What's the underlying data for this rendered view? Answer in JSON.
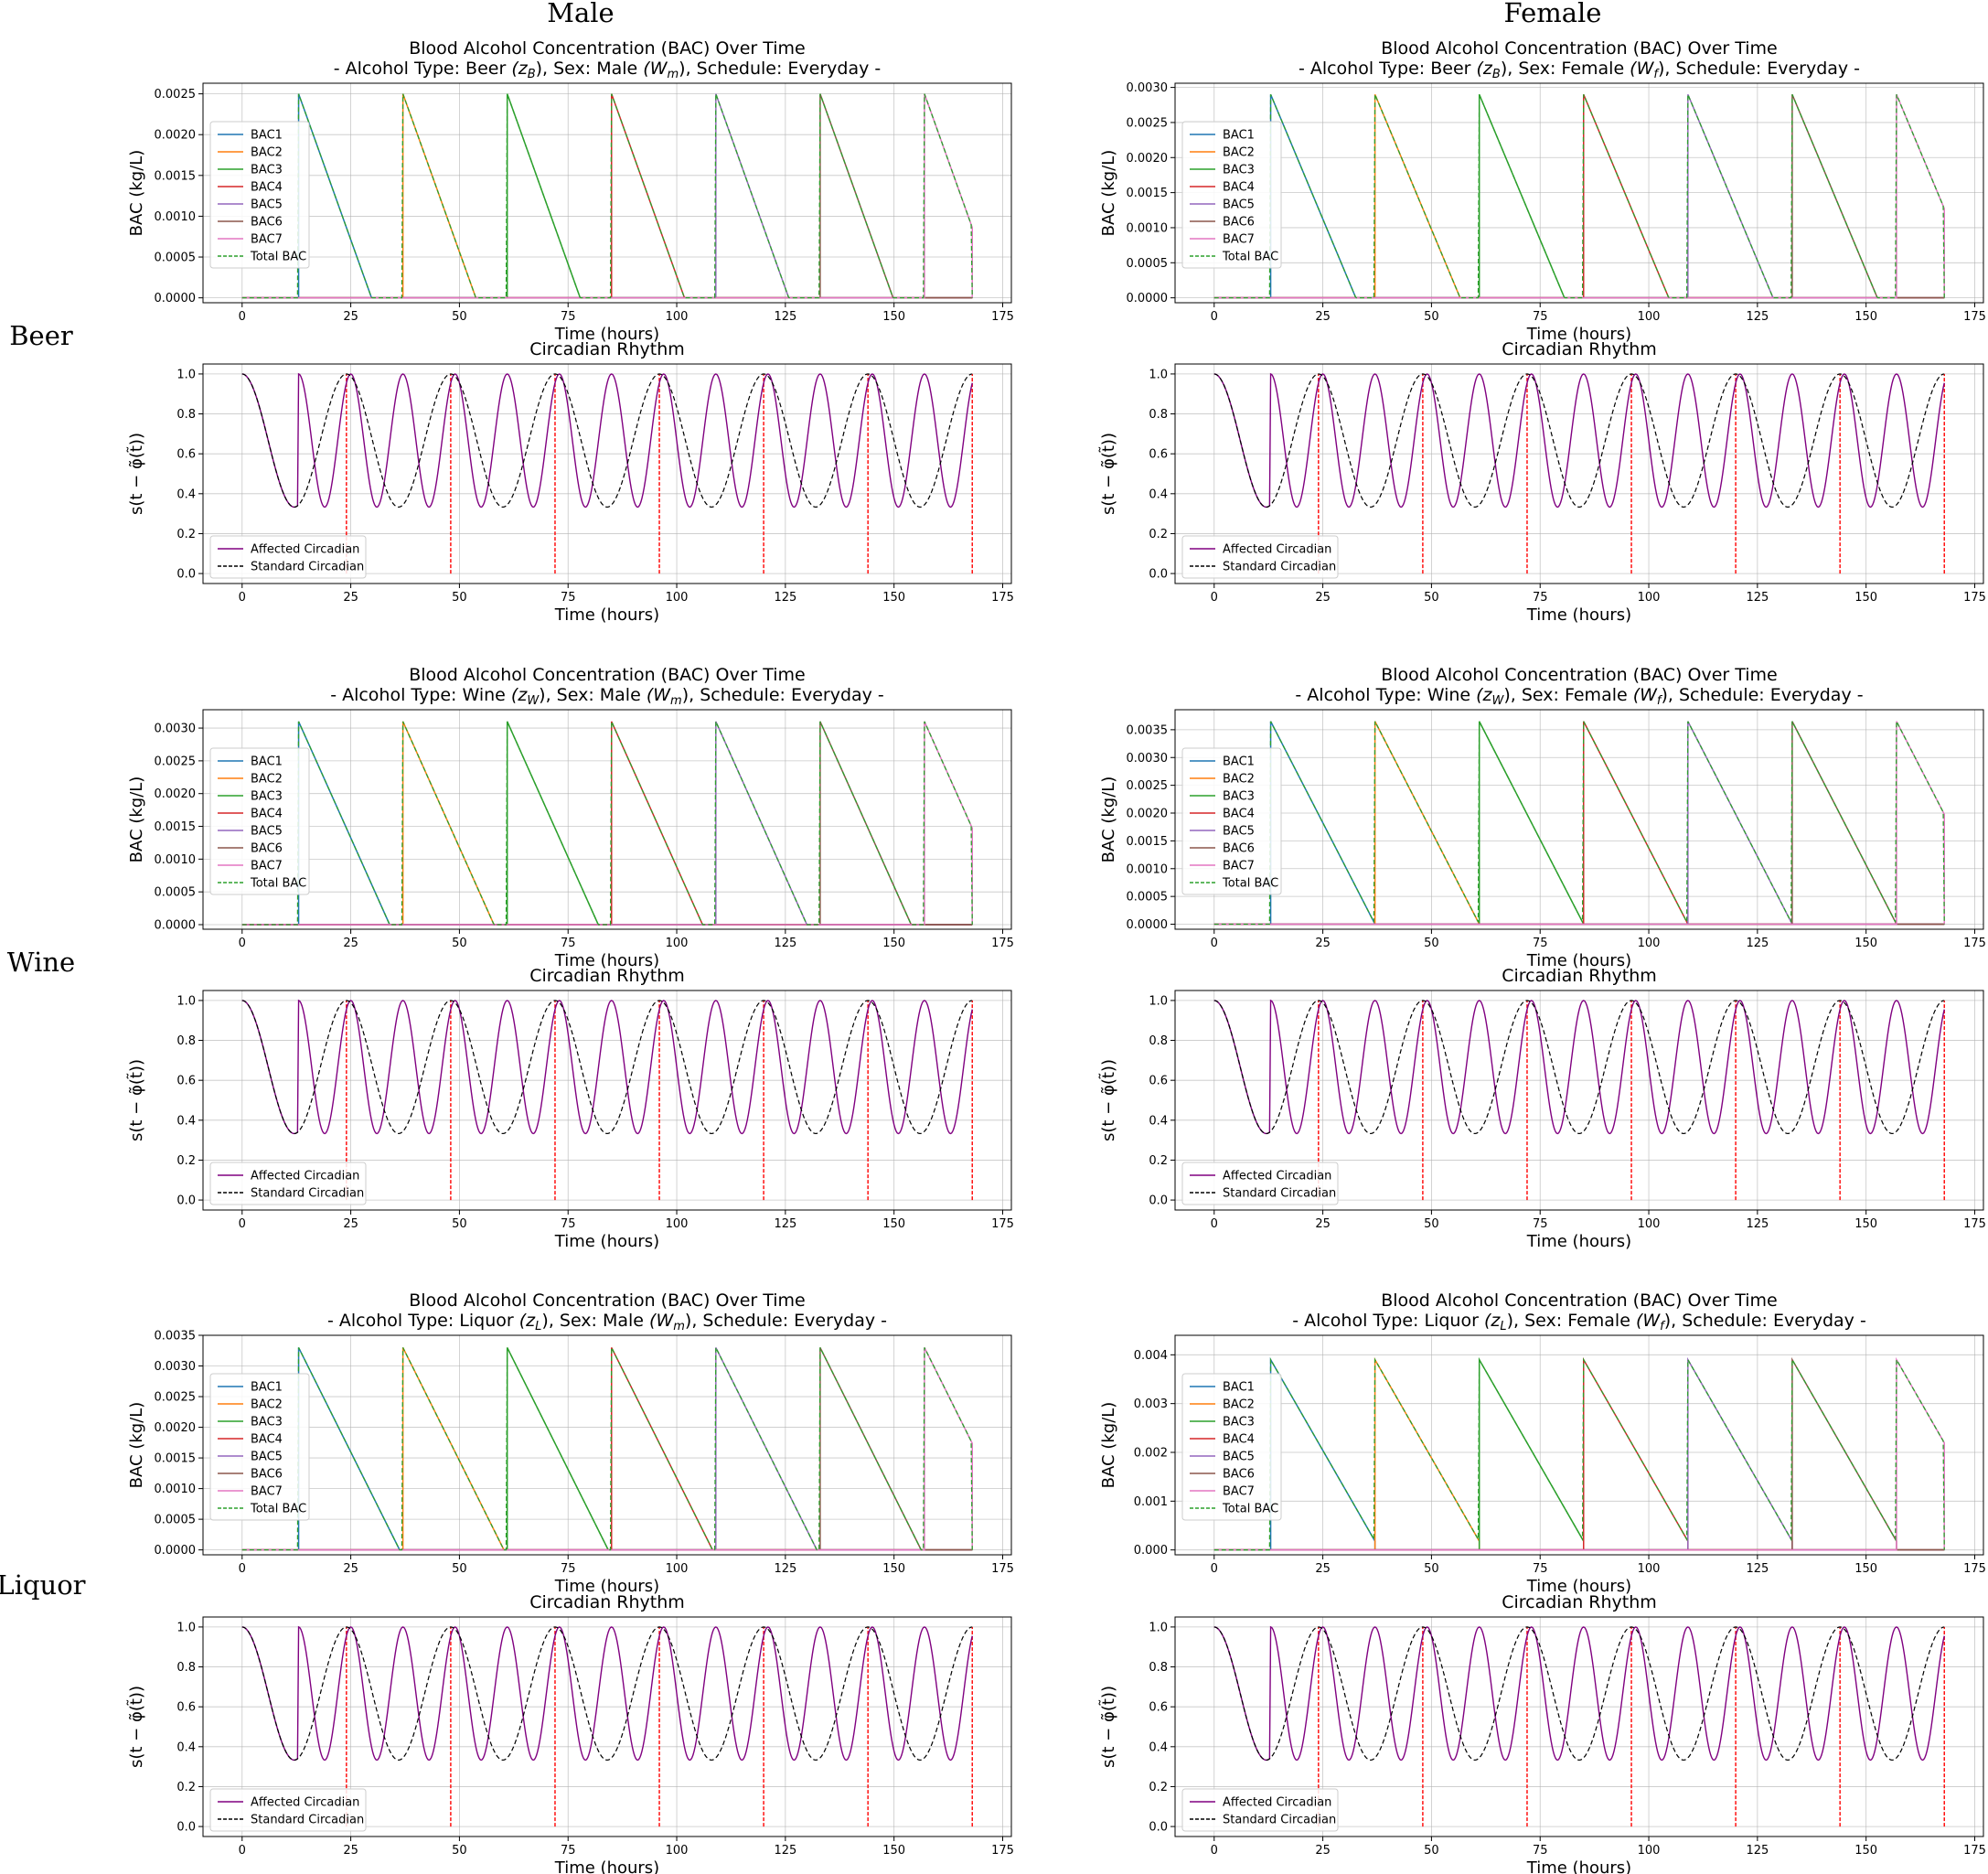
{
  "column_headers": [
    "Male",
    "Female"
  ],
  "row_headers": [
    "Beer",
    "Wine",
    "Liquor"
  ],
  "colors": {
    "BAC1": "#1f77b4",
    "BAC2": "#ff7f0e",
    "BAC3": "#2ca02c",
    "BAC4": "#d62728",
    "BAC5": "#9467bd",
    "BAC6": "#8c564b",
    "BAC7": "#e377c2",
    "Total BAC": "#2ca02c",
    "Affected Circadian": "#800080",
    "Standard Circadian": "#000000",
    "drink_markers": "#ff0000"
  },
  "chart_data": [
    {
      "type": "line",
      "sex": "Male",
      "alcohol": "Beer",
      "title_lines": [
        "Blood Alcohol Concentration (BAC) Over Time",
        "- Alcohol Type: Beer (z_B), Sex: Male (W_m), Schedule: Everyday -"
      ],
      "xlabel": "Time (hours)",
      "ylabel": "BAC (kg/L)",
      "xlim": [
        -9,
        177
      ],
      "xticks": [
        0,
        25,
        50,
        75,
        100,
        125,
        150,
        175
      ],
      "ylim": [
        -6e-05,
        0.00263
      ],
      "yticks": [
        0,
        0.0005,
        0.001,
        0.0015,
        0.002,
        0.0025
      ],
      "ytick_labels": [
        "0.0000",
        "0.0005",
        "0.0010",
        "0.0015",
        "0.0020",
        "0.0025"
      ],
      "grid": true,
      "legend_position": "upper left",
      "legend": [
        "BAC1",
        "BAC2",
        "BAC3",
        "BAC4",
        "BAC5",
        "BAC6",
        "BAC7",
        "Total BAC"
      ],
      "drink_times": [
        13,
        37,
        61,
        85,
        109,
        133,
        157
      ],
      "peak": 0.0025,
      "elim_rate": 0.000149,
      "end_time": 168
    },
    {
      "type": "line",
      "sex": "Male",
      "alcohol": "Beer",
      "title_lines": [
        "Circadian Rhythm"
      ],
      "xlabel": "Time (hours)",
      "ylabel": "s(t − φ̃(t̃))",
      "xlim": [
        -9,
        177
      ],
      "xticks": [
        0,
        25,
        50,
        75,
        100,
        125,
        150,
        175
      ],
      "ylim": [
        -0.05,
        1.05
      ],
      "yticks": [
        0,
        0.2,
        0.4,
        0.6,
        0.8,
        1.0
      ],
      "ytick_labels": [
        "0.0",
        "0.2",
        "0.4",
        "0.6",
        "0.8",
        "1.0"
      ],
      "grid": true,
      "legend_position": "lower left",
      "legend": [
        "Affected Circadian",
        "Standard Circadian"
      ],
      "drink_times": [
        13,
        37,
        61,
        85,
        109,
        133,
        157
      ],
      "marker_times": [
        24,
        48,
        72,
        96,
        120,
        144,
        168
      ],
      "min_value": 0.333,
      "standard_period_h": 24,
      "affected_period_h": 12,
      "affected_after_drink_start": 0,
      "end_time": 168
    },
    {
      "type": "line",
      "sex": "Female",
      "alcohol": "Beer",
      "title_lines": [
        "Blood Alcohol Concentration (BAC) Over Time",
        "- Alcohol Type: Beer (z_B), Sex: Female (W_f), Schedule: Everyday -"
      ],
      "xlabel": "Time (hours)",
      "ylabel": "BAC (kg/L)",
      "xlim": [
        -9,
        177
      ],
      "xticks": [
        0,
        25,
        50,
        75,
        100,
        125,
        150,
        175
      ],
      "ylim": [
        -7e-05,
        0.00306
      ],
      "yticks": [
        0,
        0.0005,
        0.001,
        0.0015,
        0.002,
        0.0025,
        0.003
      ],
      "ytick_labels": [
        "0.0000",
        "0.0005",
        "0.0010",
        "0.0015",
        "0.0020",
        "0.0025",
        "0.0030"
      ],
      "grid": true,
      "legend_position": "upper left",
      "legend": [
        "BAC1",
        "BAC2",
        "BAC3",
        "BAC4",
        "BAC5",
        "BAC6",
        "BAC7",
        "Total BAC"
      ],
      "drink_times": [
        13,
        37,
        61,
        85,
        109,
        133,
        157
      ],
      "peak": 0.0029,
      "elim_rate": 0.000148,
      "end_time": 168
    },
    {
      "type": "line",
      "sex": "Female",
      "alcohol": "Beer",
      "title_lines": [
        "Circadian Rhythm"
      ],
      "xlabel": "Time (hours)",
      "ylabel": "s(t − φ̃(t̃))",
      "xlim": [
        -9,
        177
      ],
      "xticks": [
        0,
        25,
        50,
        75,
        100,
        125,
        150,
        175
      ],
      "ylim": [
        -0.05,
        1.05
      ],
      "yticks": [
        0,
        0.2,
        0.4,
        0.6,
        0.8,
        1.0
      ],
      "ytick_labels": [
        "0.0",
        "0.2",
        "0.4",
        "0.6",
        "0.8",
        "1.0"
      ],
      "grid": true,
      "legend_position": "lower left",
      "legend": [
        "Affected Circadian",
        "Standard Circadian"
      ],
      "drink_times": [
        13,
        37,
        61,
        85,
        109,
        133,
        157
      ],
      "marker_times": [
        24,
        48,
        72,
        96,
        120,
        144,
        168
      ],
      "min_value": 0.333,
      "standard_period_h": 24,
      "affected_period_h": 12,
      "affected_after_drink_start": 0,
      "end_time": 168
    },
    {
      "type": "line",
      "sex": "Male",
      "alcohol": "Wine",
      "title_lines": [
        "Blood Alcohol Concentration (BAC) Over Time",
        "- Alcohol Type: Wine (z_W), Sex: Male (W_m), Schedule: Everyday -"
      ],
      "xlabel": "Time (hours)",
      "ylabel": "BAC (kg/L)",
      "xlim": [
        -9,
        177
      ],
      "xticks": [
        0,
        25,
        50,
        75,
        100,
        125,
        150,
        175
      ],
      "ylim": [
        -7e-05,
        0.00328
      ],
      "yticks": [
        0,
        0.0005,
        0.001,
        0.0015,
        0.002,
        0.0025,
        0.003
      ],
      "ytick_labels": [
        "0.0000",
        "0.0005",
        "0.0010",
        "0.0015",
        "0.0020",
        "0.0025",
        "0.0030"
      ],
      "grid": true,
      "legend_position": "upper left",
      "legend": [
        "BAC1",
        "BAC2",
        "BAC3",
        "BAC4",
        "BAC5",
        "BAC6",
        "BAC7",
        "Total BAC"
      ],
      "drink_times": [
        13,
        37,
        61,
        85,
        109,
        133,
        157
      ],
      "peak": 0.0031,
      "elim_rate": 0.000148,
      "end_time": 168
    },
    {
      "type": "line",
      "sex": "Male",
      "alcohol": "Wine",
      "title_lines": [
        "Circadian Rhythm"
      ],
      "xlabel": "Time (hours)",
      "ylabel": "s(t − φ̃(t̃))",
      "xlim": [
        -9,
        177
      ],
      "xticks": [
        0,
        25,
        50,
        75,
        100,
        125,
        150,
        175
      ],
      "ylim": [
        -0.05,
        1.05
      ],
      "yticks": [
        0,
        0.2,
        0.4,
        0.6,
        0.8,
        1.0
      ],
      "ytick_labels": [
        "0.0",
        "0.2",
        "0.4",
        "0.6",
        "0.8",
        "1.0"
      ],
      "grid": true,
      "legend_position": "lower left",
      "legend": [
        "Affected Circadian",
        "Standard Circadian"
      ],
      "drink_times": [
        13,
        37,
        61,
        85,
        109,
        133,
        157
      ],
      "marker_times": [
        24,
        48,
        72,
        96,
        120,
        144,
        168
      ],
      "min_value": 0.333,
      "standard_period_h": 24,
      "affected_period_h": 12,
      "affected_after_drink_start": 0,
      "end_time": 168
    },
    {
      "type": "line",
      "sex": "Female",
      "alcohol": "Wine",
      "title_lines": [
        "Blood Alcohol Concentration (BAC) Over Time",
        "- Alcohol Type: Wine (z_W), Sex: Female (W_f), Schedule: Everyday -"
      ],
      "xlabel": "Time (hours)",
      "ylabel": "BAC (kg/L)",
      "xlim": [
        -9,
        177
      ],
      "xticks": [
        0,
        25,
        50,
        75,
        100,
        125,
        150,
        175
      ],
      "ylim": [
        -9e-05,
        0.00386
      ],
      "yticks": [
        0,
        0.0005,
        0.001,
        0.0015,
        0.002,
        0.0025,
        0.003,
        0.0035
      ],
      "ytick_labels": [
        "0.0000",
        "0.0005",
        "0.0010",
        "0.0015",
        "0.0020",
        "0.0025",
        "0.0030",
        "0.0035"
      ],
      "grid": true,
      "legend_position": "upper left",
      "legend": [
        "BAC1",
        "BAC2",
        "BAC3",
        "BAC4",
        "BAC5",
        "BAC6",
        "BAC7",
        "Total BAC"
      ],
      "drink_times": [
        13,
        37,
        61,
        85,
        109,
        133,
        157
      ],
      "peak": 0.00365,
      "elim_rate": 0.000152,
      "end_time": 168
    },
    {
      "type": "line",
      "sex": "Female",
      "alcohol": "Wine",
      "title_lines": [
        "Circadian Rhythm"
      ],
      "xlabel": "Time (hours)",
      "ylabel": "s(t − φ̃(t̃))",
      "xlim": [
        -9,
        177
      ],
      "xticks": [
        0,
        25,
        50,
        75,
        100,
        125,
        150,
        175
      ],
      "ylim": [
        -0.05,
        1.05
      ],
      "yticks": [
        0,
        0.2,
        0.4,
        0.6,
        0.8,
        1.0
      ],
      "ytick_labels": [
        "0.0",
        "0.2",
        "0.4",
        "0.6",
        "0.8",
        "1.0"
      ],
      "grid": true,
      "legend_position": "lower left",
      "legend": [
        "Affected Circadian",
        "Standard Circadian"
      ],
      "drink_times": [
        13,
        37,
        61,
        85,
        109,
        133,
        157
      ],
      "marker_times": [
        24,
        48,
        72,
        96,
        120,
        144,
        168
      ],
      "min_value": 0.333,
      "standard_period_h": 24,
      "affected_period_h": 12,
      "affected_after_drink_start": 0,
      "end_time": 168
    },
    {
      "type": "line",
      "sex": "Male",
      "alcohol": "Liquor",
      "title_lines": [
        "Blood Alcohol Concentration (BAC) Over Time",
        "- Alcohol Type: Liquor (z_L), Sex: Male (W_m), Schedule: Everyday -"
      ],
      "xlabel": "Time (hours)",
      "ylabel": "BAC (kg/L)",
      "xlim": [
        -9,
        177
      ],
      "xticks": [
        0,
        25,
        50,
        75,
        100,
        125,
        150,
        175
      ],
      "ylim": [
        -8e-05,
        0.0035
      ],
      "yticks": [
        0,
        0.0005,
        0.001,
        0.0015,
        0.002,
        0.0025,
        0.003,
        0.0035
      ],
      "ytick_labels": [
        "0.0000",
        "0.0005",
        "0.0010",
        "0.0015",
        "0.0020",
        "0.0025",
        "0.0030",
        "0.0035"
      ],
      "grid": true,
      "legend_position": "upper left",
      "legend": [
        "BAC1",
        "BAC2",
        "BAC3",
        "BAC4",
        "BAC5",
        "BAC6",
        "BAC7",
        "Total BAC"
      ],
      "drink_times": [
        13,
        37,
        61,
        85,
        109,
        133,
        157
      ],
      "peak": 0.0033,
      "elim_rate": 0.000142,
      "end_time": 168
    },
    {
      "type": "line",
      "sex": "Male",
      "alcohol": "Liquor",
      "title_lines": [
        "Circadian Rhythm"
      ],
      "xlabel": "Time (hours)",
      "ylabel": "s(t − φ̃(t̃))",
      "xlim": [
        -9,
        177
      ],
      "xticks": [
        0,
        25,
        50,
        75,
        100,
        125,
        150,
        175
      ],
      "ylim": [
        -0.05,
        1.05
      ],
      "yticks": [
        0,
        0.2,
        0.4,
        0.6,
        0.8,
        1.0
      ],
      "ytick_labels": [
        "0.0",
        "0.2",
        "0.4",
        "0.6",
        "0.8",
        "1.0"
      ],
      "grid": true,
      "legend_position": "lower left",
      "legend": [
        "Affected Circadian",
        "Standard Circadian"
      ],
      "drink_times": [
        13,
        37,
        61,
        85,
        109,
        133,
        157
      ],
      "marker_times": [
        24,
        48,
        72,
        96,
        120,
        144,
        168
      ],
      "min_value": 0.333,
      "standard_period_h": 24,
      "affected_period_h": 12,
      "affected_after_drink_start": 0,
      "end_time": 168
    },
    {
      "type": "line",
      "sex": "Female",
      "alcohol": "Liquor",
      "title_lines": [
        "Blood Alcohol Concentration (BAC) Over Time",
        "- Alcohol Type: Liquor (z_L), Sex: Female (W_f), Schedule: Everyday -"
      ],
      "xlabel": "Time (hours)",
      "ylabel": "BAC (kg/L)",
      "xlim": [
        -9,
        177
      ],
      "xticks": [
        0,
        25,
        50,
        75,
        100,
        125,
        150,
        175
      ],
      "ylim": [
        -0.0001,
        0.0044
      ],
      "yticks": [
        0,
        0.001,
        0.002,
        0.003,
        0.004
      ],
      "ytick_labels": [
        "0.000",
        "0.001",
        "0.002",
        "0.003",
        "0.004"
      ],
      "grid": true,
      "legend_position": "upper left",
      "legend": [
        "BAC1",
        "BAC2",
        "BAC3",
        "BAC4",
        "BAC5",
        "BAC6",
        "BAC7",
        "Total BAC"
      ],
      "drink_times": [
        13,
        37,
        61,
        85,
        109,
        133,
        157
      ],
      "peak": 0.0039,
      "elim_rate": 0.000155,
      "end_time": 168
    },
    {
      "type": "line",
      "sex": "Female",
      "alcohol": "Liquor",
      "title_lines": [
        "Circadian Rhythm"
      ],
      "xlabel": "Time (hours)",
      "ylabel": "s(t − φ̃(t̃))",
      "xlim": [
        -9,
        177
      ],
      "xticks": [
        0,
        25,
        50,
        75,
        100,
        125,
        150,
        175
      ],
      "ylim": [
        -0.05,
        1.05
      ],
      "yticks": [
        0,
        0.2,
        0.4,
        0.6,
        0.8,
        1.0
      ],
      "ytick_labels": [
        "0.0",
        "0.2",
        "0.4",
        "0.6",
        "0.8",
        "1.0"
      ],
      "grid": true,
      "legend_position": "lower left",
      "legend": [
        "Affected Circadian",
        "Standard Circadian"
      ],
      "drink_times": [
        13,
        37,
        61,
        85,
        109,
        133,
        157
      ],
      "marker_times": [
        24,
        48,
        72,
        96,
        120,
        144,
        168
      ],
      "min_value": 0.333,
      "standard_period_h": 24,
      "affected_period_h": 12,
      "affected_after_drink_start": 0,
      "end_time": 168
    }
  ]
}
